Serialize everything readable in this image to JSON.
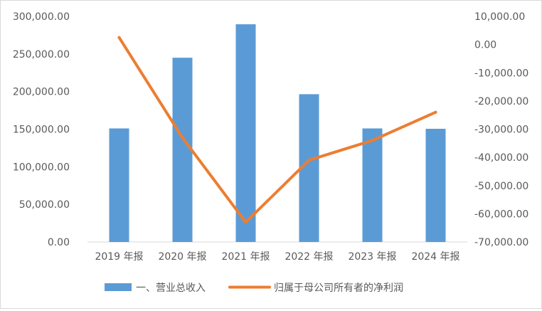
{
  "chart_data": {
    "type": "bar",
    "title": "",
    "categories": [
      "2019 年报",
      "2020 年报",
      "2021 年报",
      "2022 年报",
      "2023 年报",
      "2024 年报"
    ],
    "series": [
      {
        "name": "一、营业总收入",
        "type": "bar",
        "axis": "left",
        "color": "#5b9bd5",
        "values": [
          151000,
          245000,
          289500,
          196500,
          151000,
          150500
        ]
      },
      {
        "name": "归属于母公司所有者的净利润",
        "type": "line",
        "axis": "right",
        "color": "#ed7d31",
        "values": [
          2500,
          -33000,
          -63000,
          -41000,
          -34000,
          -24000
        ]
      }
    ],
    "ylim_left": [
      0,
      300000
    ],
    "yticks_left": [
      "0.00",
      "50,000.00",
      "100,000.00",
      "150,000.00",
      "200,000.00",
      "250,000.00",
      "300,000.00"
    ],
    "ylim_right": [
      -70000,
      10000
    ],
    "yticks_right": [
      "-70,000.00",
      "-60,000.00",
      "-50,000.00",
      "-40,000.00",
      "-30,000.00",
      "-20,000.00",
      "-10,000.00",
      "0.00",
      "10,000.00"
    ],
    "grid": false,
    "legend_position": "bottom"
  }
}
